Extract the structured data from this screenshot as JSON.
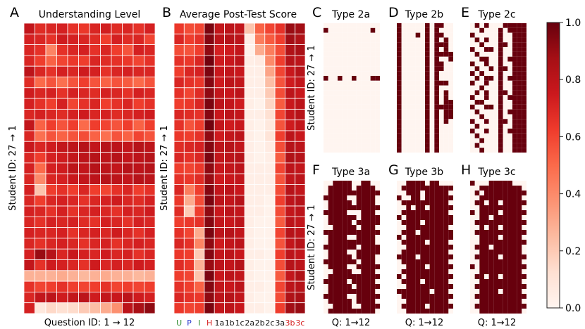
{
  "panels": [
    {
      "letter": "A",
      "title": "Understanding Level",
      "ylabel": "Student ID: 27 → 1",
      "xlabel": "Question ID: 1 → 12"
    },
    {
      "letter": "B",
      "title": "Average Post-Test Score",
      "ylabel": "Student ID: 27 → 1",
      "xticks": [
        {
          "label": "U",
          "color": "#2e8b2e"
        },
        {
          "label": "P",
          "color": "#2233cc"
        },
        {
          "label": "I",
          "color": "#2e8b2e"
        },
        {
          "label": "H",
          "color": "#d62020"
        },
        {
          "label": "1a",
          "color": "#111111"
        },
        {
          "label": "1b",
          "color": "#111111"
        },
        {
          "label": "1c",
          "color": "#111111"
        },
        {
          "label": "2a",
          "color": "#111111"
        },
        {
          "label": "2b",
          "color": "#111111"
        },
        {
          "label": "2c",
          "color": "#111111"
        },
        {
          "label": "3a",
          "color": "#111111"
        },
        {
          "label": "3b",
          "color": "#d62020"
        },
        {
          "label": "3c",
          "color": "#d62020"
        }
      ]
    },
    {
      "letter": "C",
      "title": "Type 2a",
      "ylabel": "Student ID: 27 → 1"
    },
    {
      "letter": "D",
      "title": "Type 2b"
    },
    {
      "letter": "E",
      "title": "Type 2c"
    },
    {
      "letter": "F",
      "title": "Type 3a",
      "ylabel": "Student ID: 27 → 1",
      "xlabel": "Q: 1→12"
    },
    {
      "letter": "G",
      "title": "Type 3b",
      "xlabel": "Q: 1→12"
    },
    {
      "letter": "H",
      "title": "Type 3c",
      "xlabel": "Q: 1→12"
    }
  ],
  "colorbar": {
    "ticks": [
      "0.0",
      "0.2",
      "0.4",
      "0.6",
      "0.8",
      "1.0"
    ]
  },
  "colors": {
    "colormap": "Reds",
    "low": "#fff5f0",
    "high": "#67000d"
  },
  "chart_data": [
    {
      "panel": "A",
      "type": "heatmap",
      "colormap": "Reds",
      "vmin": 0,
      "vmax": 1,
      "rows": 27,
      "cols": 12,
      "values": [
        [
          0.78,
          0.68,
          0.7,
          0.72,
          0.66,
          0.64,
          0.7,
          0.73,
          0.68,
          0.7,
          0.66,
          0.72
        ],
        [
          0.72,
          0.7,
          0.66,
          0.74,
          0.72,
          0.7,
          0.68,
          0.62,
          0.72,
          0.68,
          0.7,
          0.6
        ],
        [
          0.7,
          0.66,
          0.42,
          0.66,
          0.7,
          0.72,
          0.66,
          0.7,
          0.62,
          0.56,
          0.72,
          0.7
        ],
        [
          0.7,
          0.62,
          0.52,
          0.6,
          0.64,
          0.62,
          0.7,
          0.68,
          0.66,
          0.64,
          0.6,
          0.66
        ],
        [
          0.8,
          0.7,
          0.66,
          0.72,
          0.7,
          0.74,
          0.72,
          0.66,
          0.7,
          0.72,
          0.7,
          0.7
        ],
        [
          0.68,
          0.5,
          0.56,
          0.48,
          0.56,
          0.62,
          0.56,
          0.52,
          0.56,
          0.54,
          0.5,
          0.56
        ],
        [
          0.74,
          0.7,
          0.72,
          0.66,
          0.72,
          0.7,
          0.68,
          0.72,
          0.7,
          0.66,
          0.72,
          0.7
        ],
        [
          0.72,
          0.66,
          0.62,
          0.72,
          0.6,
          0.66,
          0.7,
          0.62,
          0.66,
          0.7,
          0.62,
          0.66
        ],
        [
          0.7,
          0.72,
          0.7,
          0.68,
          0.72,
          0.74,
          0.7,
          0.72,
          0.68,
          0.7,
          0.72,
          0.74
        ],
        [
          0.78,
          0.52,
          0.62,
          0.56,
          0.62,
          0.5,
          0.62,
          0.6,
          0.56,
          0.62,
          0.52,
          0.62
        ],
        [
          0.7,
          0.48,
          0.56,
          0.52,
          0.56,
          0.58,
          0.52,
          0.48,
          0.56,
          0.52,
          0.6,
          0.56
        ],
        [
          0.76,
          0.7,
          0.74,
          0.78,
          0.8,
          0.82,
          0.78,
          0.82,
          0.8,
          0.78,
          0.82,
          0.8
        ],
        [
          0.7,
          0.62,
          0.72,
          0.74,
          0.78,
          0.8,
          0.82,
          0.8,
          0.82,
          0.78,
          0.8,
          0.82
        ],
        [
          0.72,
          0.5,
          0.72,
          0.74,
          0.8,
          0.78,
          0.82,
          0.8,
          0.78,
          0.82,
          0.8,
          0.82
        ],
        [
          0.7,
          0.4,
          0.7,
          0.72,
          0.76,
          0.78,
          0.8,
          0.82,
          0.8,
          0.78,
          0.82,
          0.8
        ],
        [
          0.72,
          0.22,
          0.62,
          0.66,
          0.62,
          0.7,
          0.62,
          0.6,
          0.66,
          0.7,
          0.62,
          0.66
        ],
        [
          0.7,
          0.62,
          0.7,
          0.72,
          0.7,
          0.66,
          0.7,
          0.72,
          0.74,
          0.7,
          0.68,
          0.72
        ],
        [
          0.72,
          0.7,
          0.66,
          0.72,
          0.66,
          0.7,
          0.72,
          0.7,
          0.66,
          0.72,
          0.7,
          0.74
        ],
        [
          0.7,
          0.66,
          0.72,
          0.7,
          0.72,
          0.68,
          0.66,
          0.72,
          0.7,
          0.66,
          0.72,
          0.7
        ],
        [
          0.72,
          0.7,
          0.7,
          0.72,
          0.66,
          0.7,
          0.72,
          0.7,
          0.74,
          0.7,
          0.66,
          0.72
        ],
        [
          0.7,
          0.66,
          0.7,
          0.72,
          0.7,
          0.66,
          0.7,
          0.72,
          0.66,
          0.7,
          0.72,
          0.7
        ],
        [
          0.72,
          0.9,
          0.82,
          0.7,
          0.76,
          0.72,
          0.7,
          0.74,
          0.7,
          0.72,
          0.66,
          0.7
        ],
        [
          0.78,
          0.66,
          0.74,
          0.72,
          0.7,
          0.66,
          0.74,
          0.7,
          0.72,
          0.7,
          0.74,
          0.72
        ],
        [
          0.28,
          0.28,
          0.28,
          0.3,
          0.28,
          0.26,
          0.28,
          0.3,
          0.28,
          0.28,
          0.26,
          0.28
        ],
        [
          0.66,
          0.6,
          0.62,
          0.66,
          0.62,
          0.6,
          0.62,
          0.66,
          0.6,
          0.62,
          0.6,
          0.62
        ],
        [
          0.7,
          0.78,
          0.8,
          0.74,
          0.78,
          0.8,
          0.74,
          0.78,
          0.76,
          0.8,
          0.74,
          0.72
        ],
        [
          0.72,
          0.08,
          0.15,
          0.12,
          0.14,
          0.2,
          0.24,
          0.3,
          0.38,
          0.8,
          0.86,
          0.92
        ]
      ]
    },
    {
      "panel": "B",
      "type": "heatmap",
      "colormap": "Reds",
      "vmin": 0,
      "vmax": 1,
      "rows": 27,
      "cols": 13,
      "values": [
        [
          0.64,
          0.58,
          0.6,
          0.96,
          0.78,
          0.8,
          0.78,
          0.22,
          0.52,
          0.6,
          0.66,
          0.9,
          0.88
        ],
        [
          0.7,
          0.62,
          0.66,
          0.94,
          0.8,
          0.82,
          0.8,
          0.04,
          0.44,
          0.54,
          0.62,
          0.88,
          0.84
        ],
        [
          0.58,
          0.56,
          0.62,
          0.92,
          0.72,
          0.74,
          0.78,
          0.02,
          0.3,
          0.44,
          0.58,
          0.84,
          0.86
        ],
        [
          0.66,
          0.64,
          0.7,
          0.98,
          0.74,
          0.76,
          0.8,
          0.04,
          0.06,
          0.4,
          0.62,
          0.82,
          0.8
        ],
        [
          0.62,
          0.7,
          0.72,
          0.96,
          0.76,
          0.78,
          0.76,
          0.04,
          0.04,
          0.32,
          0.6,
          0.76,
          0.82
        ],
        [
          0.7,
          0.66,
          0.64,
          0.94,
          0.74,
          0.8,
          0.78,
          0.04,
          0.04,
          0.24,
          0.56,
          0.74,
          0.78
        ],
        [
          0.66,
          0.6,
          0.68,
          0.92,
          0.78,
          0.76,
          0.8,
          0.04,
          0.04,
          0.2,
          0.58,
          0.8,
          0.76
        ],
        [
          0.62,
          0.64,
          0.7,
          0.96,
          0.8,
          0.78,
          0.74,
          0.04,
          0.02,
          0.16,
          0.54,
          0.76,
          0.8
        ],
        [
          0.7,
          0.68,
          0.66,
          0.94,
          0.76,
          0.8,
          0.78,
          0.04,
          0.04,
          0.12,
          0.6,
          0.78,
          0.82
        ],
        [
          0.66,
          0.56,
          0.62,
          0.98,
          0.78,
          0.74,
          0.76,
          0.04,
          0.02,
          0.08,
          0.56,
          0.74,
          0.78
        ],
        [
          0.64,
          0.62,
          0.66,
          0.92,
          0.74,
          0.78,
          0.8,
          0.04,
          0.02,
          0.1,
          0.62,
          0.8,
          0.76
        ],
        [
          0.68,
          0.7,
          0.72,
          0.94,
          0.8,
          0.82,
          0.78,
          0.04,
          0.02,
          0.06,
          0.58,
          0.82,
          0.8
        ],
        [
          0.7,
          0.66,
          0.7,
          0.96,
          0.78,
          0.8,
          0.82,
          0.04,
          0.02,
          0.04,
          0.54,
          0.84,
          0.82
        ],
        [
          0.62,
          0.6,
          0.64,
          0.92,
          0.76,
          0.78,
          0.8,
          0.04,
          0.04,
          0.04,
          0.6,
          0.8,
          0.78
        ],
        [
          0.66,
          0.64,
          0.68,
          0.9,
          0.74,
          0.76,
          0.78,
          0.04,
          0.04,
          0.04,
          0.56,
          0.78,
          0.8
        ],
        [
          0.7,
          0.44,
          0.62,
          0.94,
          0.78,
          0.8,
          0.76,
          0.04,
          0.04,
          0.04,
          0.58,
          0.82,
          0.78
        ],
        [
          0.64,
          0.3,
          0.58,
          0.96,
          0.8,
          0.78,
          0.82,
          0.04,
          0.04,
          0.02,
          0.62,
          0.8,
          0.82
        ],
        [
          0.68,
          0.2,
          0.62,
          0.92,
          0.76,
          0.8,
          0.78,
          0.04,
          0.04,
          0.02,
          0.58,
          0.78,
          0.8
        ],
        [
          0.62,
          0.64,
          0.66,
          0.94,
          0.78,
          0.76,
          0.8,
          0.04,
          0.02,
          0.02,
          0.54,
          0.8,
          0.78
        ],
        [
          0.66,
          0.6,
          0.3,
          0.96,
          0.8,
          0.82,
          0.78,
          0.04,
          0.02,
          0.02,
          0.6,
          0.82,
          0.8
        ],
        [
          0.7,
          0.66,
          0.42,
          0.92,
          0.74,
          0.78,
          0.8,
          0.04,
          0.02,
          0.02,
          0.56,
          0.78,
          0.82
        ],
        [
          0.64,
          0.62,
          0.2,
          0.94,
          0.78,
          0.8,
          0.76,
          0.04,
          0.04,
          0.02,
          0.62,
          0.8,
          0.78
        ],
        [
          0.68,
          0.64,
          0.28,
          0.9,
          0.8,
          0.78,
          0.82,
          0.04,
          0.02,
          0.02,
          0.58,
          0.82,
          0.8
        ],
        [
          0.62,
          0.6,
          0.22,
          0.96,
          0.76,
          0.8,
          0.78,
          0.04,
          0.02,
          0.02,
          0.54,
          0.78,
          0.84
        ],
        [
          0.66,
          0.62,
          0.52,
          0.94,
          0.78,
          0.76,
          0.8,
          0.04,
          0.04,
          0.02,
          0.6,
          0.8,
          0.82
        ],
        [
          0.7,
          0.66,
          0.64,
          0.92,
          0.8,
          0.82,
          0.78,
          0.04,
          0.02,
          0.02,
          0.58,
          0.84,
          0.86
        ],
        [
          0.64,
          0.6,
          0.62,
          0.96,
          0.78,
          0.8,
          0.76,
          0.04,
          0.04,
          0.02,
          0.62,
          0.88,
          0.9
        ]
      ]
    },
    {
      "panel": "C",
      "type": "heatmap",
      "colormap": "Reds",
      "vmin": 0,
      "vmax": 1,
      "rows": 27,
      "cols": 12,
      "binary_rows": [
        "000000000000",
        "100000000010",
        "000000000000",
        "000000000000",
        "000000000000",
        "000000000000",
        "000000000000",
        "000000000000",
        "000000000000",
        "000000000000",
        "000000000000",
        "100100100011",
        "000000000000",
        "000000000000",
        "000000000000",
        "000000000000",
        "000000000000",
        "000000000000",
        "000000000000",
        "000000000000",
        "000000000000",
        "000000000000",
        "000000000000",
        "000000000000",
        "000000000000",
        "000000000000",
        "000000000000"
      ]
    },
    {
      "panel": "D",
      "type": "heatmap",
      "colormap": "Reds",
      "vmin": 0,
      "vmax": 1,
      "rows": 27,
      "cols": 12,
      "binary_rows": [
        "100000101100",
        "100000101000",
        "100010101100",
        "100000101010",
        "100000101110",
        "100000101010",
        "100000101111",
        "100000101001",
        "100000101100",
        "100000101100",
        "100000101000",
        "100000101000",
        "100000101110",
        "100000101000",
        "100000101010",
        "100000101010",
        "100000101011",
        "100000101111",
        "100000101011",
        "100000101011",
        "100000101010",
        "100000101000",
        "100000101000",
        "100000101000",
        "100000101000",
        "100000101000",
        "100000101000"
      ]
    },
    {
      "panel": "E",
      "type": "heatmap",
      "colormap": "Reds",
      "vmin": 0,
      "vmax": 1,
      "rows": 27,
      "cols": 12,
      "binary_rows": [
        "010100011111",
        "001000101111",
        "100000100111",
        "010100100111",
        "001000110111",
        "100110100111",
        "010000100111",
        "001100101111",
        "100100100111",
        "010010110111",
        "101000100111",
        "010110101111",
        "100100100111",
        "001000100111",
        "010100110111",
        "100100101111",
        "011000100111",
        "100110100111",
        "010000101111",
        "001000100111",
        "100100110111",
        "010000100111",
        "100100101111",
        "010000100111",
        "001000100111",
        "010000100111",
        "001000100111"
      ]
    },
    {
      "panel": "F",
      "type": "heatmap",
      "colormap": "Reds",
      "vmin": 0,
      "vmax": 1,
      "rows": 27,
      "cols": 12,
      "binary_rows": [
        "001111001100",
        "011111011110",
        "011111111111",
        "111110011110",
        "011111011110",
        "011111111111",
        "111110001110",
        "011111101111",
        "011111011111",
        "001111101110",
        "111111111111",
        "011110011110",
        "011111111110",
        "111111101111",
        "011110011111",
        "011111011110",
        "111111101110",
        "011110011111",
        "001111001110",
        "011111111111",
        "111110111110",
        "011111011111",
        "011111111110",
        "111110011111",
        "011111011110",
        "001111001111",
        "011111111110"
      ]
    },
    {
      "panel": "G",
      "type": "heatmap",
      "colormap": "Reds",
      "vmin": 0,
      "vmax": 1,
      "rows": 27,
      "cols": 12,
      "binary_rows": [
        "001111011000",
        "011111111111",
        "001110111110",
        "100110111111",
        "011111111110",
        "001011011111",
        "011111111110",
        "101111111111",
        "011110111111",
        "001111111110",
        "011101111111",
        "101111111111",
        "011111011110",
        "001111111111",
        "011111111110",
        "111101111111",
        "011111111110",
        "001111011111",
        "011111111110",
        "101111111111",
        "011110111110",
        "001111111111",
        "111111101110",
        "011111111111",
        "001111111110",
        "011111011111",
        "001111111110"
      ]
    },
    {
      "panel": "H",
      "type": "heatmap",
      "colormap": "Reds",
      "vmin": 0,
      "vmax": 1,
      "rows": 27,
      "cols": 12,
      "binary_rows": [
        "100011111000",
        "001111111110",
        "010111111111",
        "001111111110",
        "011011011111",
        "001111111110",
        "101111011111",
        "001101111110",
        "011111111111",
        "001011011110",
        "011111111111",
        "001111011110",
        "001111111111",
        "011101111110",
        "001111111110",
        "011111011111",
        "001111111110",
        "101111111111",
        "001111111110",
        "011011011111",
        "001111111110",
        "011111111111",
        "001111011110",
        "011111111111",
        "001111111110",
        "011111111111",
        "001111111110"
      ]
    }
  ]
}
